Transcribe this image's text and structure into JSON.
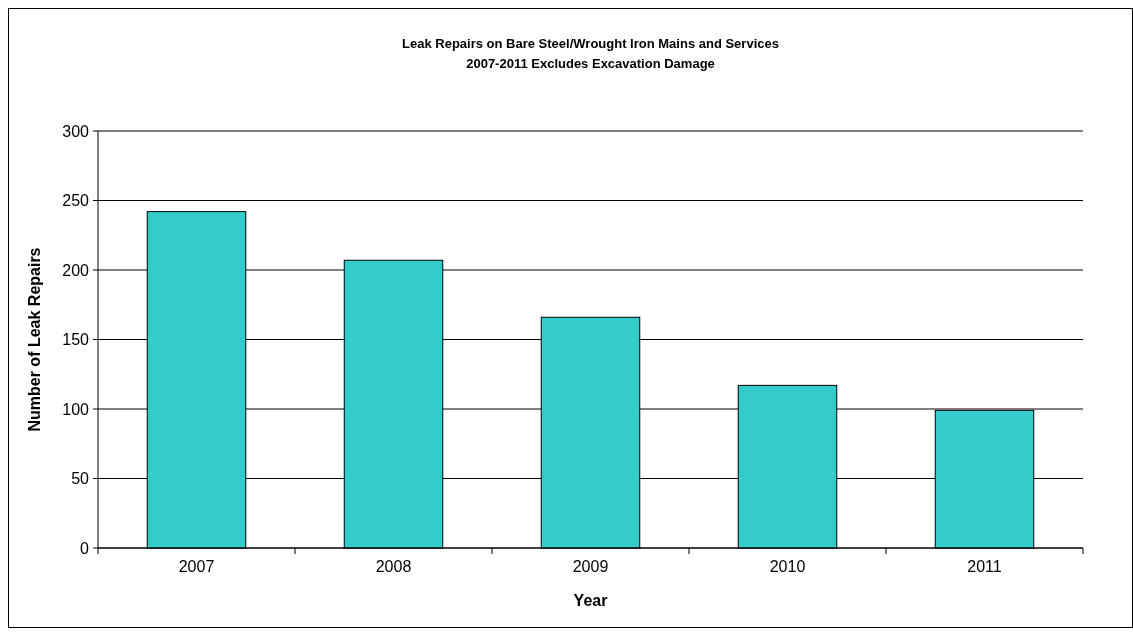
{
  "chart_data": {
    "type": "bar",
    "title": "Leak Repairs on Bare Steel/Wrought Iron Mains and Services",
    "subtitle": "2007-2011 Excludes Excavation Damage",
    "xlabel": "Year",
    "ylabel": "Number of Leak Repairs",
    "categories": [
      "2007",
      "2008",
      "2009",
      "2010",
      "2011"
    ],
    "values": [
      242,
      207,
      166,
      117,
      99
    ],
    "color": "#33cccc",
    "ylim": [
      0,
      300
    ],
    "yticks": [
      0,
      50,
      100,
      150,
      200,
      250,
      300
    ],
    "grid": "y"
  }
}
